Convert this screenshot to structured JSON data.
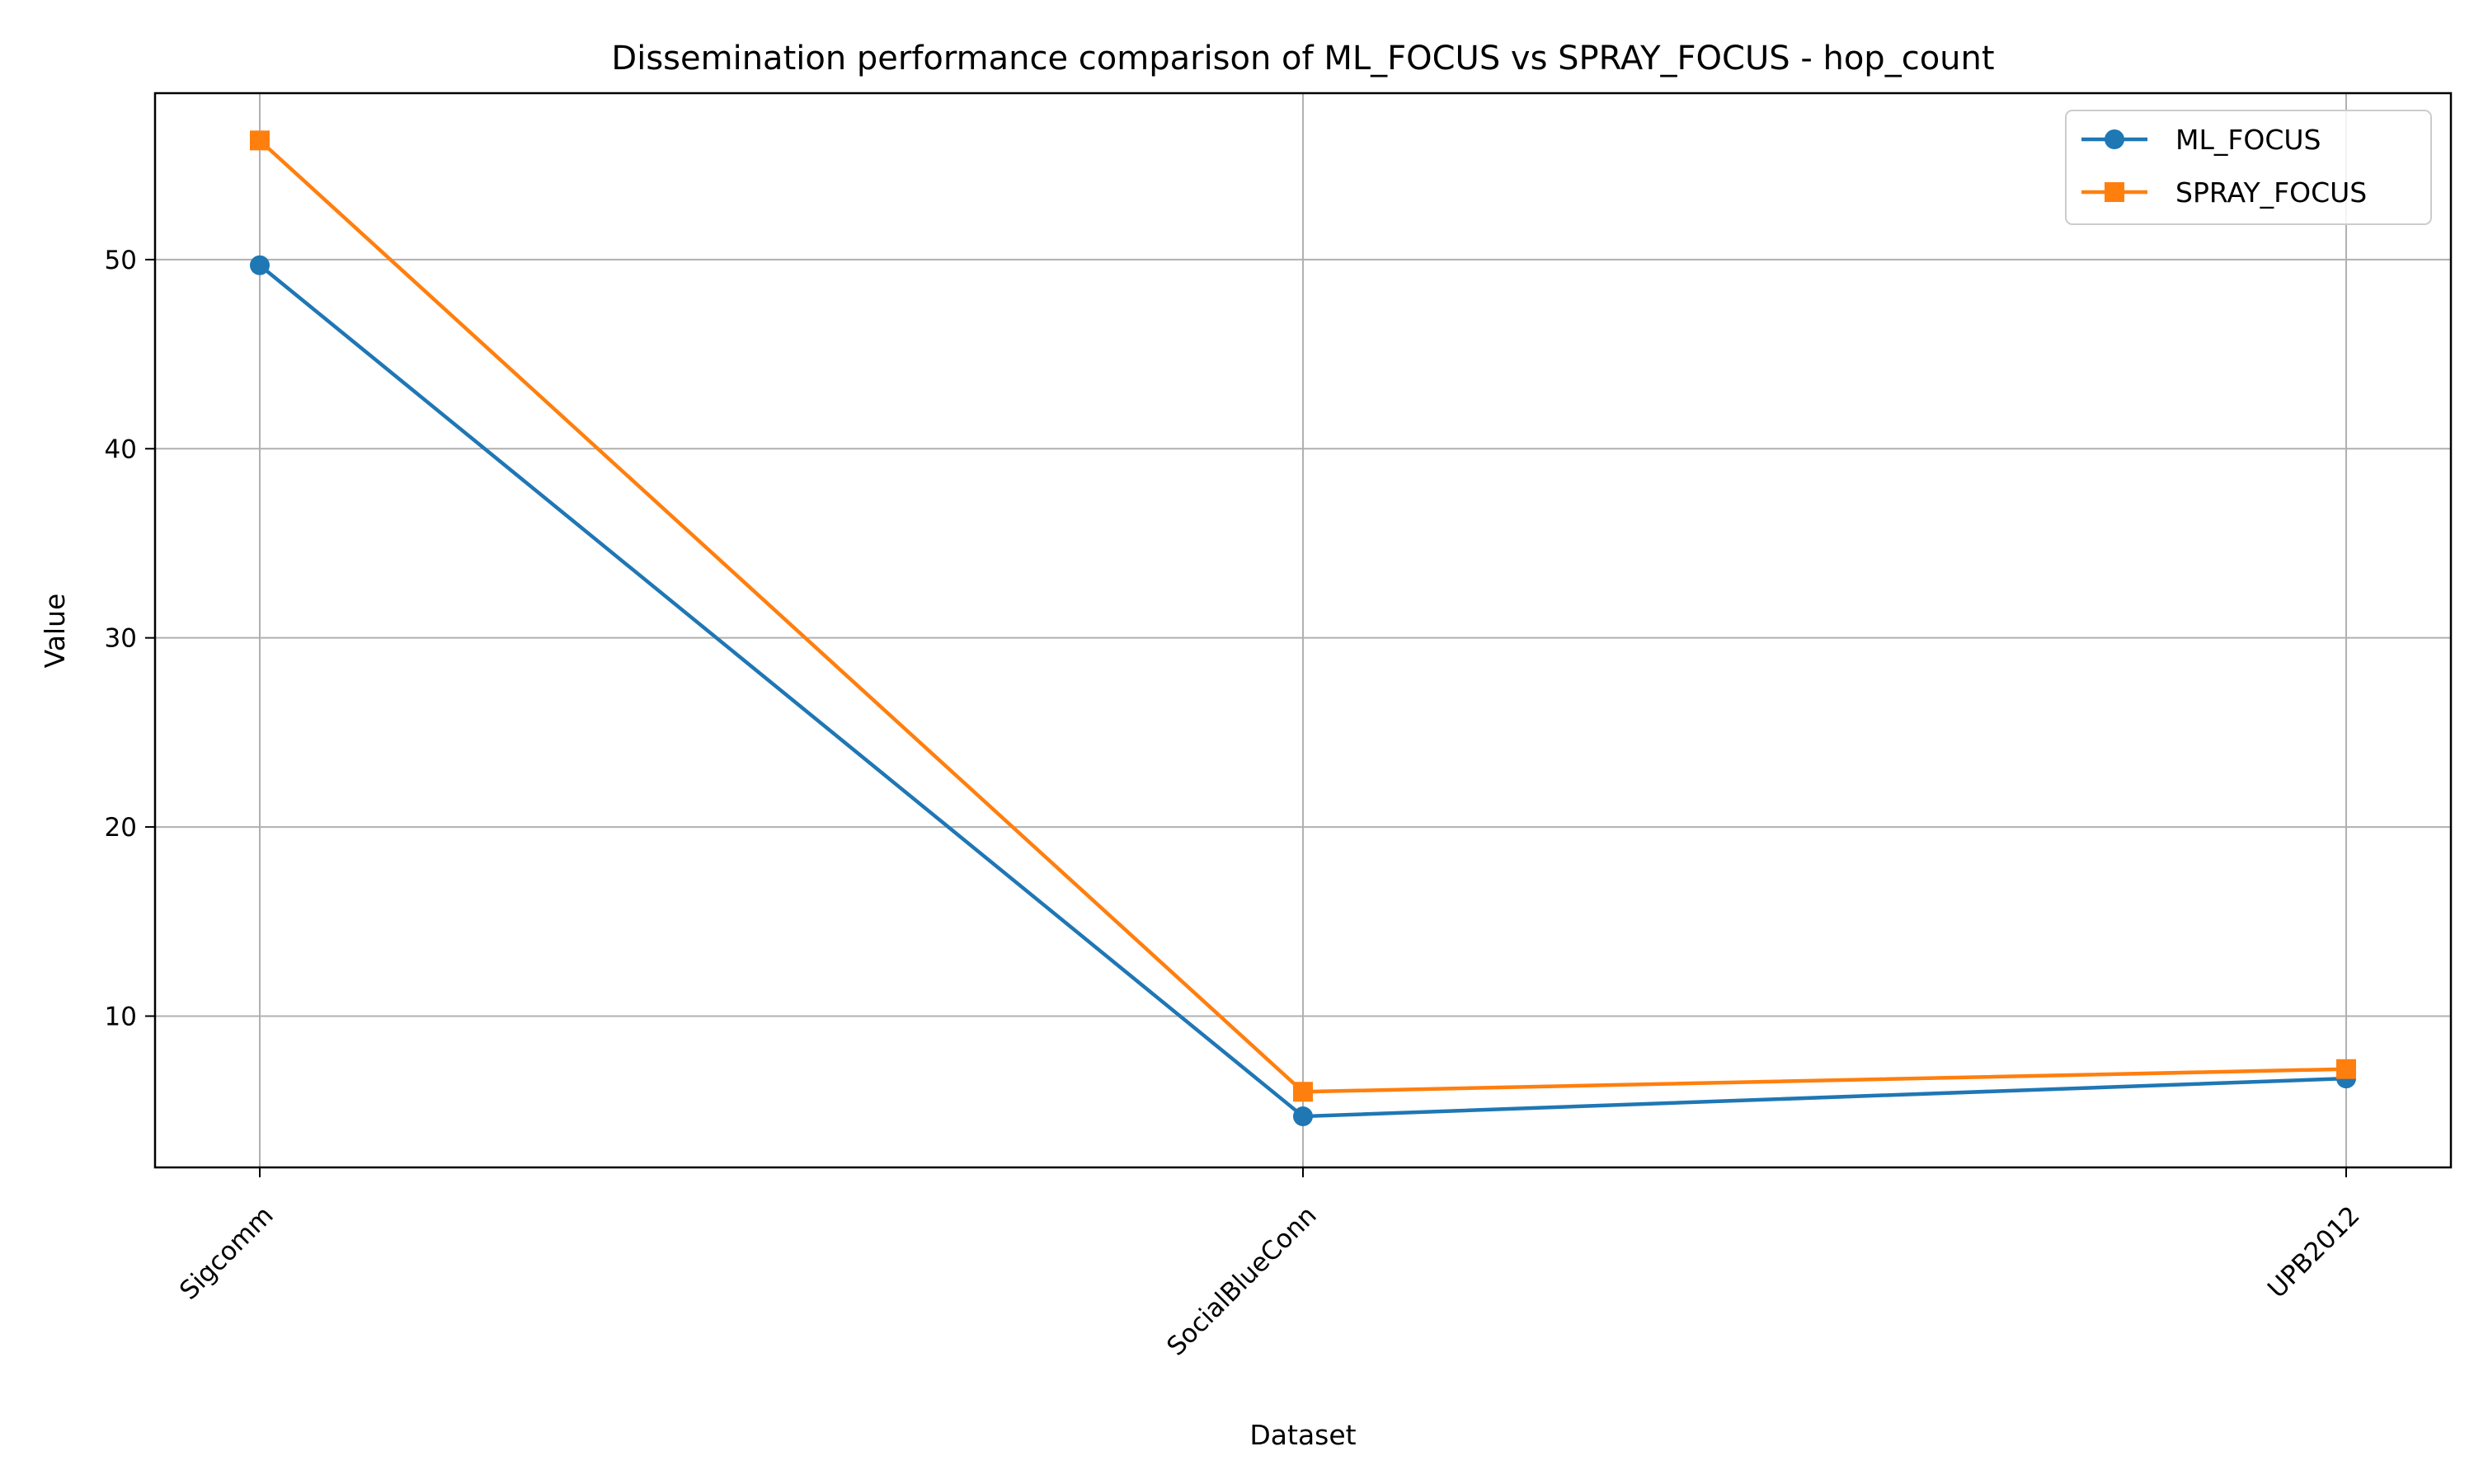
{
  "chart_data": {
    "type": "line",
    "title": "Dissemination performance comparison of ML_FOCUS vs SPRAY_FOCUS - hop_count",
    "xlabel": "Dataset",
    "ylabel": "Value",
    "categories": [
      "Sigcomm",
      "SocialBlueConn",
      "UPB2012"
    ],
    "yticks": [
      10,
      20,
      30,
      40,
      50
    ],
    "ylim": [
      2,
      58.8
    ],
    "grid": true,
    "legend_position": "top-right",
    "series": [
      {
        "name": "ML_FOCUS",
        "values": [
          49.7,
          4.7,
          6.7
        ],
        "color": "#1f77b4",
        "marker": "circle"
      },
      {
        "name": "SPRAY_FOCUS",
        "values": [
          56.3,
          6.0,
          7.2
        ],
        "color": "#ff7f0e",
        "marker": "square"
      }
    ]
  }
}
